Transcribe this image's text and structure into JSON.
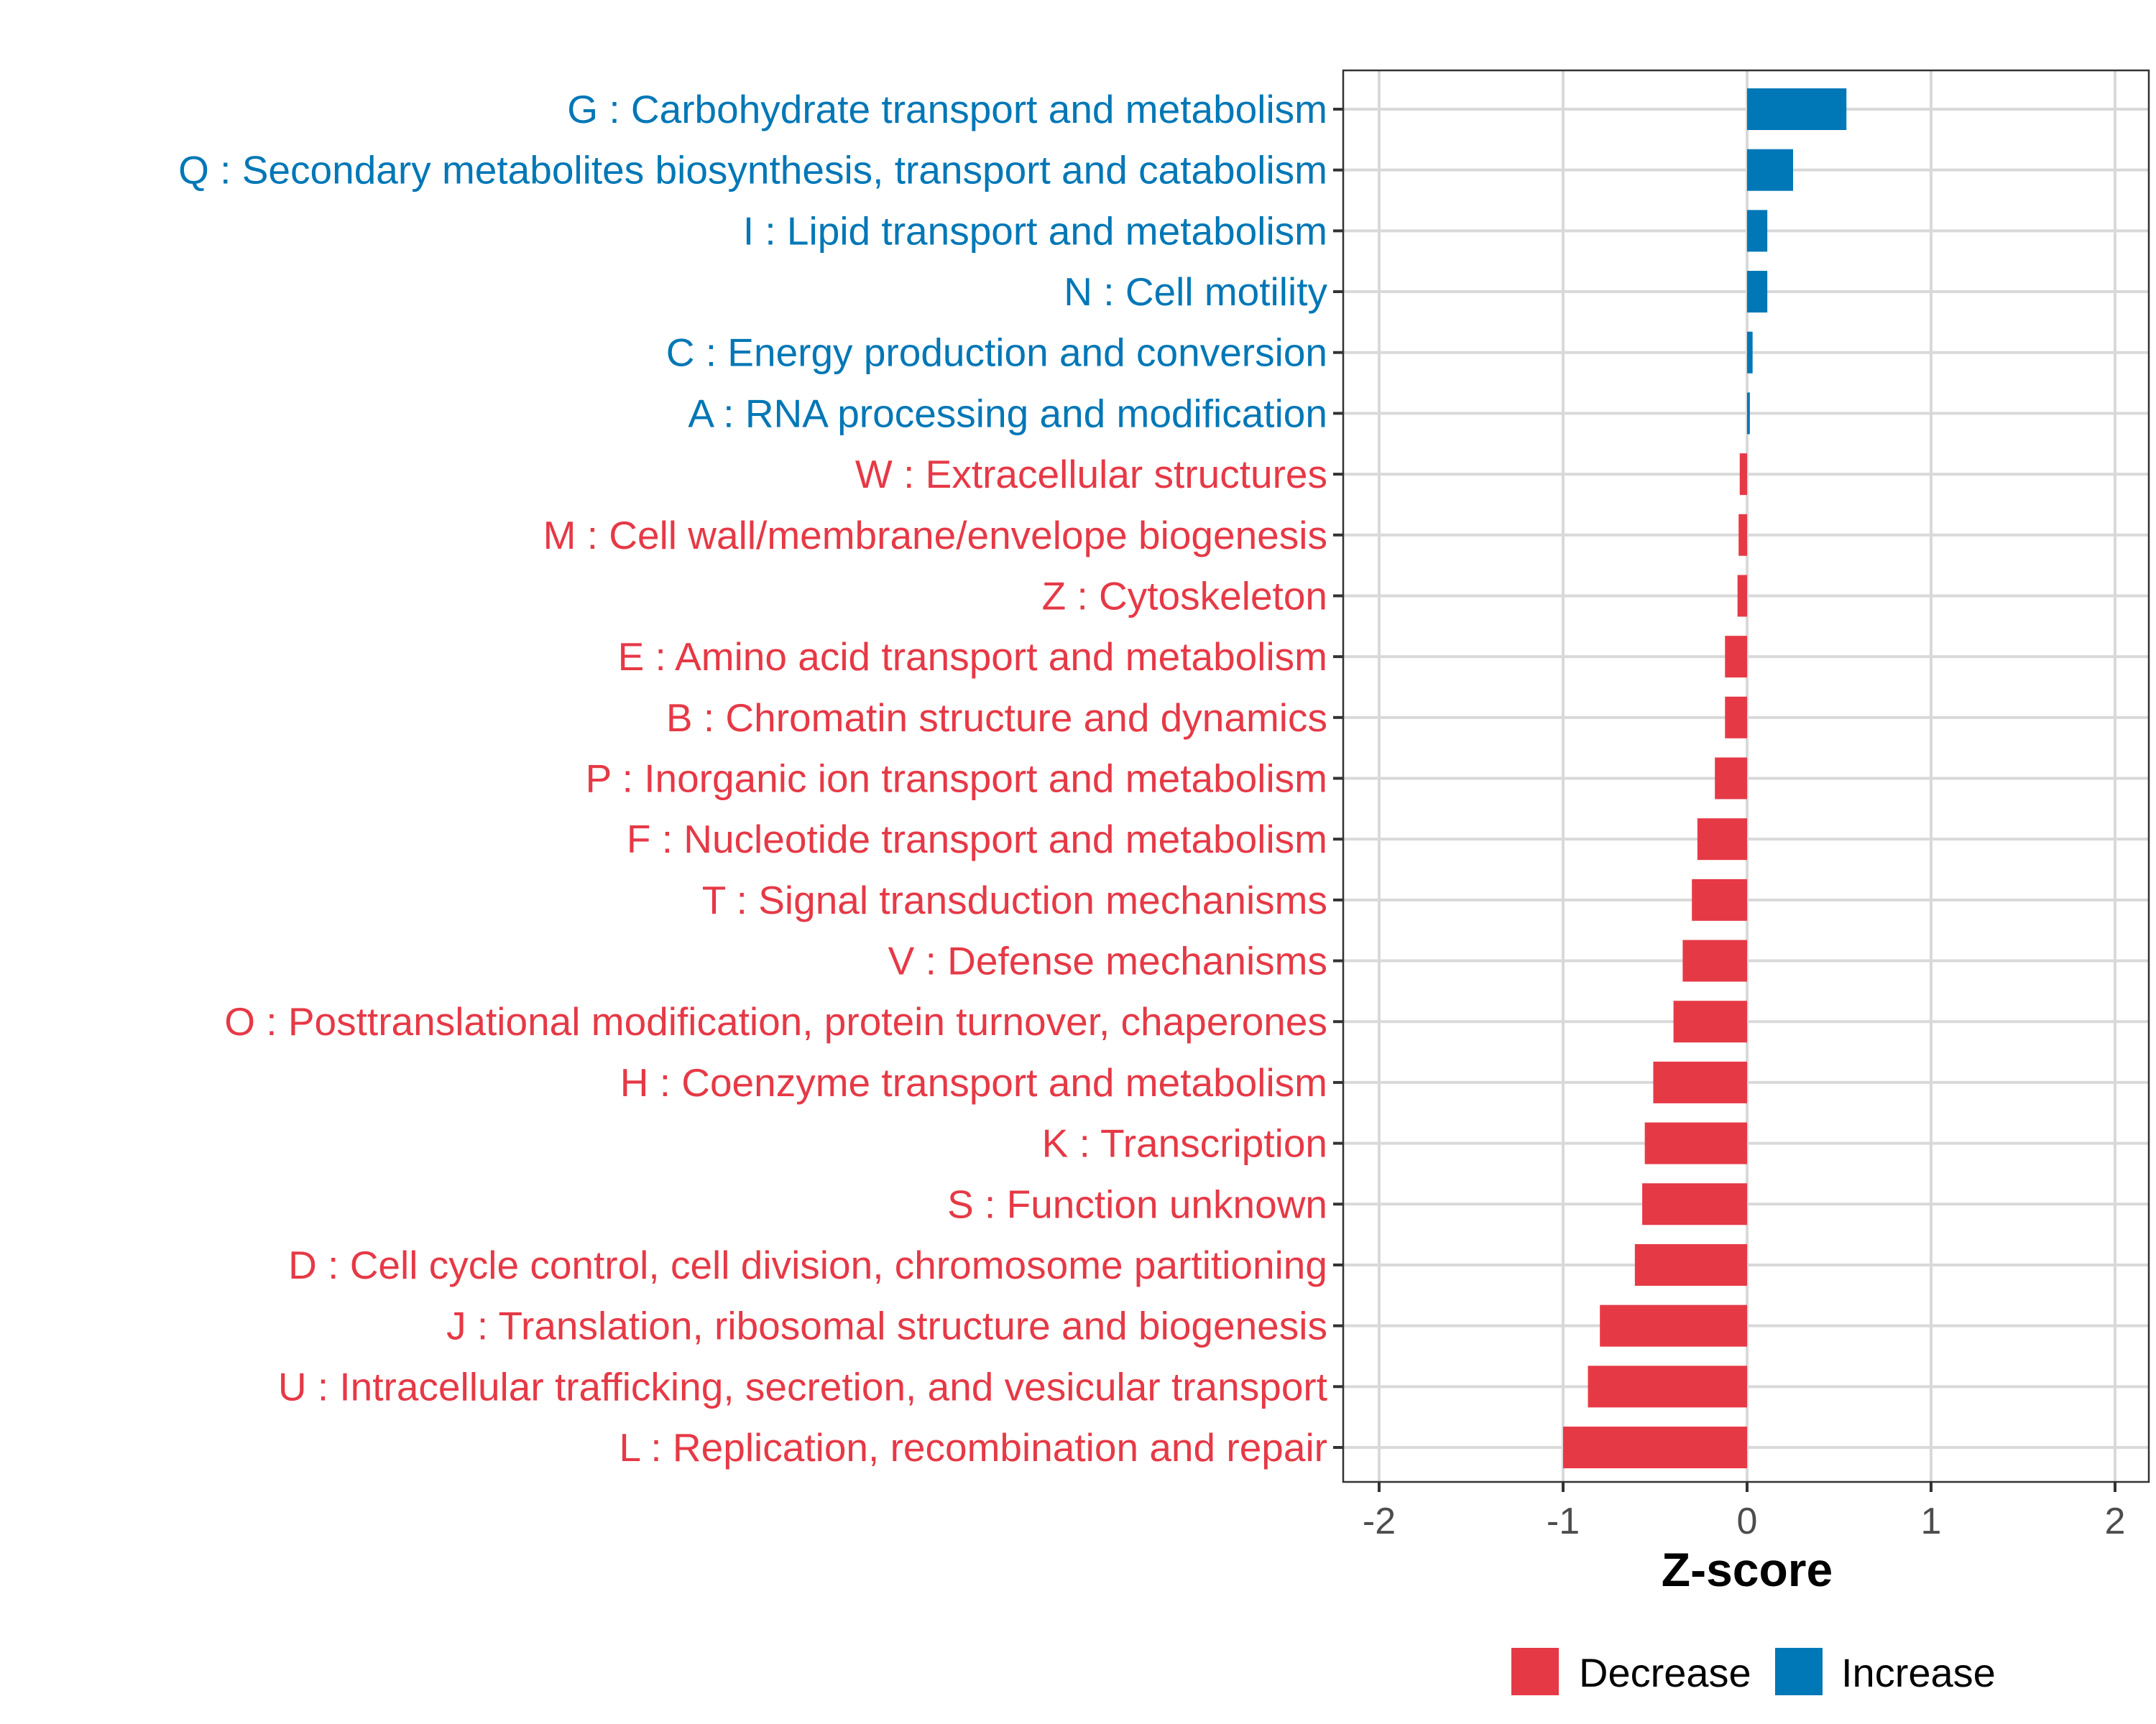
{
  "chart_data": {
    "type": "bar",
    "orientation": "horizontal",
    "title": "",
    "xlabel": "Z-score",
    "ylabel": "",
    "xlim": [
      -2.2,
      2.2
    ],
    "xticks": [
      -2,
      -1,
      0,
      1,
      2
    ],
    "xtick_labels": [
      "-2",
      "-1",
      "0",
      "1",
      "2"
    ],
    "grid": true,
    "legend_position": "bottom",
    "legend": [
      {
        "name": "Decrease",
        "color": "#E63946"
      },
      {
        "name": "Increase",
        "color": "#0077B6"
      }
    ],
    "categories": [
      "G : Carbohydrate transport and metabolism",
      "Q : Secondary metabolites biosynthesis, transport and catabolism",
      "I : Lipid transport and metabolism",
      "N : Cell motility",
      "C : Energy production and conversion",
      "A : RNA processing and modification",
      "W : Extracellular structures",
      "M : Cell wall/membrane/envelope biogenesis",
      "Z : Cytoskeleton",
      "E : Amino acid transport and metabolism",
      "B : Chromatin structure and dynamics",
      "P : Inorganic ion transport and metabolism",
      "F : Nucleotide transport and metabolism",
      "T : Signal transduction mechanisms",
      "V : Defense mechanisms",
      "O : Posttranslational modification, protein turnover, chaperones",
      "H : Coenzyme transport and metabolism",
      "K : Transcription",
      "S : Function unknown",
      "D : Cell cycle control, cell division, chromosome partitioning",
      "J : Translation, ribosomal structure and biogenesis",
      "U : Intracellular trafficking, secretion, and vesicular transport",
      "L : Replication, recombination and repair"
    ],
    "values": [
      0.54,
      0.25,
      0.11,
      0.11,
      0.03,
      0.015,
      -0.04,
      -0.046,
      -0.052,
      -0.12,
      -0.12,
      -0.175,
      -0.27,
      -0.3,
      -0.35,
      -0.4,
      -0.51,
      -0.556,
      -0.57,
      -0.61,
      -0.8,
      -0.865,
      -1.0
    ],
    "groups": [
      "Increase",
      "Increase",
      "Increase",
      "Increase",
      "Increase",
      "Increase",
      "Decrease",
      "Decrease",
      "Decrease",
      "Decrease",
      "Decrease",
      "Decrease",
      "Decrease",
      "Decrease",
      "Decrease",
      "Decrease",
      "Decrease",
      "Decrease",
      "Decrease",
      "Decrease",
      "Decrease",
      "Decrease",
      "Decrease"
    ]
  }
}
